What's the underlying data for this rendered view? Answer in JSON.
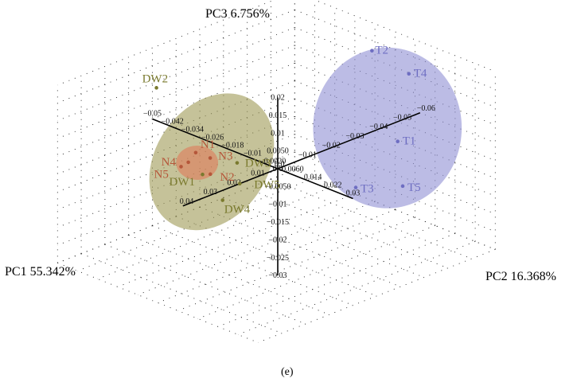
{
  "chart_data": {
    "type": "scatter",
    "title": "",
    "caption": "(e)",
    "axes": {
      "pc1": {
        "label": "PC1 55.342%",
        "ticks": [
          "0.04",
          "0.03",
          "0.02",
          "0.01",
          "0.0",
          "−0.01",
          "−0.02",
          "−0.03",
          "−0.04",
          "−0.05",
          "−0.06"
        ]
      },
      "pc2": {
        "label": "PC2 16.368%",
        "ticks": [
          "−0.05",
          "−0.042",
          "−0.034",
          "−0.026",
          "−0.018",
          "−0.01",
          "−0.0020",
          "0.0060",
          "0.014",
          "0.022",
          "0.03"
        ]
      },
      "pc3": {
        "label": "PC3 6.756%",
        "ticks": [
          "0.02",
          "0.015",
          "0.01",
          "0.0050",
          "0.0",
          "−0.0050",
          "−0.01",
          "−0.015",
          "−0.02",
          "−0.025",
          "−0.03"
        ]
      }
    },
    "grid": true,
    "colors": {
      "DW": "#7a7a2e",
      "N": "#b5573a",
      "T": "#6e6ec2",
      "DW_ellipse": "#9e9a55",
      "N_ellipse": "#e07a5a",
      "T_ellipse": "#8f8fd3"
    },
    "series": [
      {
        "group": "DW",
        "points": [
          {
            "label": "DW2",
            "pc1": 0.03,
            "pc2": -0.02,
            "pc3": 0.025
          },
          {
            "label": "DW1",
            "pc1": 0.0,
            "pc2": -0.03,
            "pc3": -0.01
          },
          {
            "label": "DW3",
            "pc1": -0.004,
            "pc2": -0.02,
            "pc3": -0.005
          },
          {
            "label": "DW4",
            "pc1": 0.0,
            "pc2": -0.022,
            "pc3": -0.015
          },
          {
            "label": "DW5",
            "pc1": -0.003,
            "pc2": -0.018,
            "pc3": -0.01
          }
        ]
      },
      {
        "group": "N",
        "points": [
          {
            "label": "N1",
            "pc1": 0.005,
            "pc2": -0.028,
            "pc3": -0.002
          },
          {
            "label": "N2",
            "pc1": 0.002,
            "pc2": -0.025,
            "pc3": -0.008
          },
          {
            "label": "N3",
            "pc1": 0.001,
            "pc2": -0.026,
            "pc3": -0.004
          },
          {
            "label": "N4",
            "pc1": 0.006,
            "pc2": -0.03,
            "pc3": -0.005
          },
          {
            "label": "N5",
            "pc1": 0.008,
            "pc2": -0.031,
            "pc3": -0.006
          }
        ]
      },
      {
        "group": "T",
        "points": [
          {
            "label": "T1",
            "pc1": -0.04,
            "pc2": 0.01,
            "pc3": 0.0
          },
          {
            "label": "T2",
            "pc1": -0.045,
            "pc2": -0.005,
            "pc3": 0.02
          },
          {
            "label": "T3",
            "pc1": -0.035,
            "pc2": -0.002,
            "pc3": -0.015
          },
          {
            "label": "T4",
            "pc1": -0.05,
            "pc2": 0.005,
            "pc3": 0.015
          },
          {
            "label": "T5",
            "pc1": -0.04,
            "pc2": 0.012,
            "pc3": -0.012
          }
        ]
      }
    ]
  }
}
